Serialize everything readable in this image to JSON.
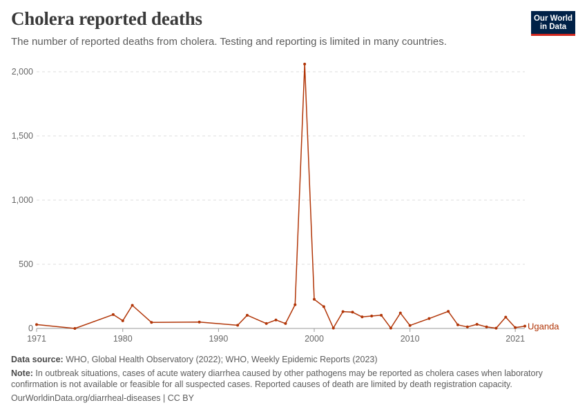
{
  "header": {
    "title": "Cholera reported deaths",
    "subtitle": "The number of reported deaths from cholera. Testing and reporting is limited in many countries."
  },
  "logo": {
    "line1": "Our World",
    "line2": "in Data"
  },
  "colors": {
    "series": "#b13507",
    "grid": "#dddddd",
    "axis": "#999999"
  },
  "footer": {
    "source_label": "Data source:",
    "source_text": " WHO, Global Health Observatory (2022); WHO, Weekly Epidemic Reports (2023)",
    "note_label": "Note:",
    "note_text": " In outbreak situations, cases of acute watery diarrhea caused by other pathogens may be reported as cholera cases when laboratory confirmation is not available or feasible for all suspected cases. Reported causes of death are limited by death registration capacity.",
    "url": "OurWorldinData.org/diarrheal-diseases | CC BY"
  },
  "chart_data": {
    "type": "line",
    "title": "Cholera reported deaths",
    "xlabel": "",
    "ylabel": "",
    "xlim": [
      1971,
      2021
    ],
    "ylim": [
      0,
      2000
    ],
    "yticks": [
      0,
      500,
      1000,
      1500,
      2000
    ],
    "ytick_labels": [
      "0",
      "500",
      "1,000",
      "1,500",
      "2,000"
    ],
    "xticks": [
      1971,
      1980,
      1990,
      2000,
      2010,
      2021
    ],
    "xtick_labels": [
      "1971",
      "1980",
      "1990",
      "2000",
      "2010",
      "2021"
    ],
    "grid": true,
    "series": [
      {
        "name": "Uganda",
        "x": [
          1971,
          1975,
          1979,
          1980,
          1981,
          1983,
          1988,
          1992,
          1993,
          1995,
          1996,
          1997,
          1998,
          1999,
          2000,
          2001,
          2002,
          2003,
          2004,
          2005,
          2006,
          2007,
          2008,
          2009,
          2010,
          2012,
          2014,
          2015,
          2016,
          2017,
          2018,
          2019,
          2020,
          2021,
          2022
        ],
        "values": [
          30,
          0,
          108,
          60,
          180,
          47,
          50,
          25,
          103,
          38,
          66,
          38,
          185,
          2060,
          227,
          170,
          3,
          131,
          127,
          90,
          97,
          103,
          3,
          120,
          23,
          77,
          133,
          28,
          12,
          32,
          12,
          2,
          88,
          7,
          18
        ]
      }
    ]
  }
}
